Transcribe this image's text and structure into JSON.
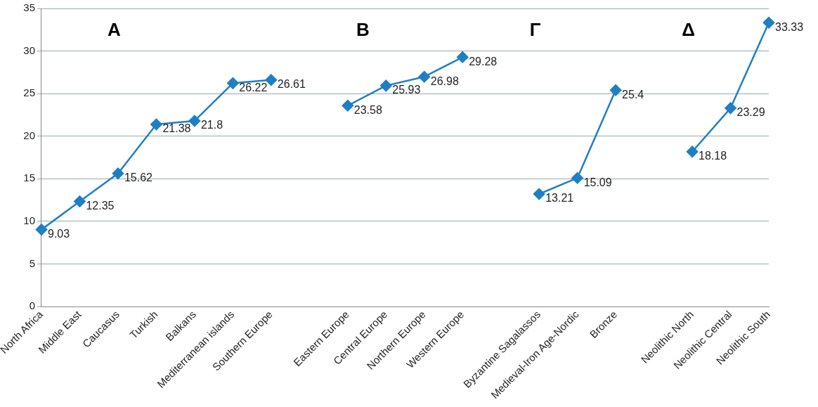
{
  "chart_data": {
    "type": "line",
    "categories": [
      "North Africa",
      "Middle East",
      "Caucasus",
      "Turkish",
      "Balkans",
      "Mediterranean islands",
      "Southern Europe",
      null,
      "Eastern Europe",
      "Central Europe",
      "Northern Europe",
      "Western Europe",
      null,
      "Byzantine Sagalassos",
      "Medieval-Iron Age-Nordic",
      "Bronze",
      null,
      "Neolithic North",
      "Neolithic Central",
      "Neolithic South"
    ],
    "series": [
      {
        "color": "#1f7fc4",
        "values": [
          9.03,
          12.35,
          15.62,
          21.38,
          21.8,
          26.22,
          26.61,
          null,
          23.58,
          25.93,
          26.98,
          29.28,
          null,
          13.21,
          15.09,
          25.4,
          null,
          18.18,
          23.29,
          33.33
        ]
      }
    ],
    "annotations": [
      "A",
      "B",
      "Γ",
      "Δ"
    ],
    "ylim": [
      0,
      35
    ],
    "yticks": [
      0,
      5,
      10,
      15,
      20,
      25,
      30,
      35
    ],
    "grid": "y",
    "legend": false,
    "marker": "diamond",
    "line_style": "solid",
    "data_labels": true
  }
}
